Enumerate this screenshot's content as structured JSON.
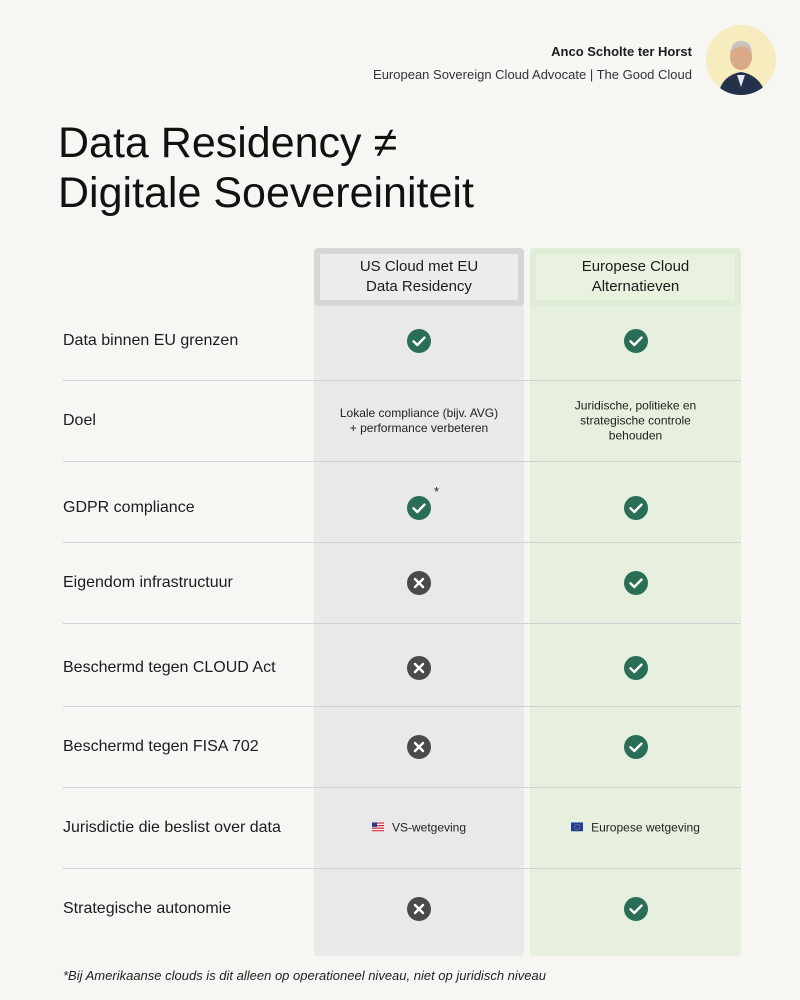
{
  "author": {
    "name": "Anco Scholte ter Horst",
    "role": "European Sovereign Cloud Advocate  | The Good Cloud"
  },
  "title": "Data Residency ≠\nDigitale Soevereiniteit",
  "columns": {
    "us": "US Cloud met EU\nData Residency",
    "eu": "Europese Cloud\nAlternatieven"
  },
  "colors": {
    "check": "#2a6e55",
    "cross": "#4a4a4a",
    "us_column": "#e9e9e9",
    "eu_column": "#e7f0df"
  },
  "rows": [
    {
      "label": "Data binnen EU grenzen",
      "us": "check-icon",
      "eu": "check-icon"
    },
    {
      "label": "Doel",
      "us_text": "Lokale compliance (bijv. AVG)\n+ performance verbeteren",
      "eu_text": "Juridische, politieke en\nstrategische controle\nbehouden"
    },
    {
      "label": "GDPR compliance",
      "us": "check-icon",
      "us_note": "*",
      "eu": "check-icon"
    },
    {
      "label": "Eigendom infrastructuur",
      "us": "cross-icon",
      "eu": "check-icon"
    },
    {
      "label": "Beschermd tegen CLOUD Act",
      "us": "cross-icon",
      "eu": "check-icon"
    },
    {
      "label": "Beschermd tegen FISA 702",
      "us": "cross-icon",
      "eu": "check-icon"
    },
    {
      "label": "Jurisdictie die beslist over data",
      "us_text": "VS-wetgeving",
      "us_flag": "us-flag-icon",
      "eu_text": "Europese wetgeving",
      "eu_flag": "eu-flag-icon"
    },
    {
      "label": "Strategische autonomie",
      "us": "cross-icon",
      "eu": "check-icon"
    }
  ],
  "footnote": "*Bij Amerikaanse clouds is dit alleen op operationeel niveau, niet op juridisch niveau"
}
